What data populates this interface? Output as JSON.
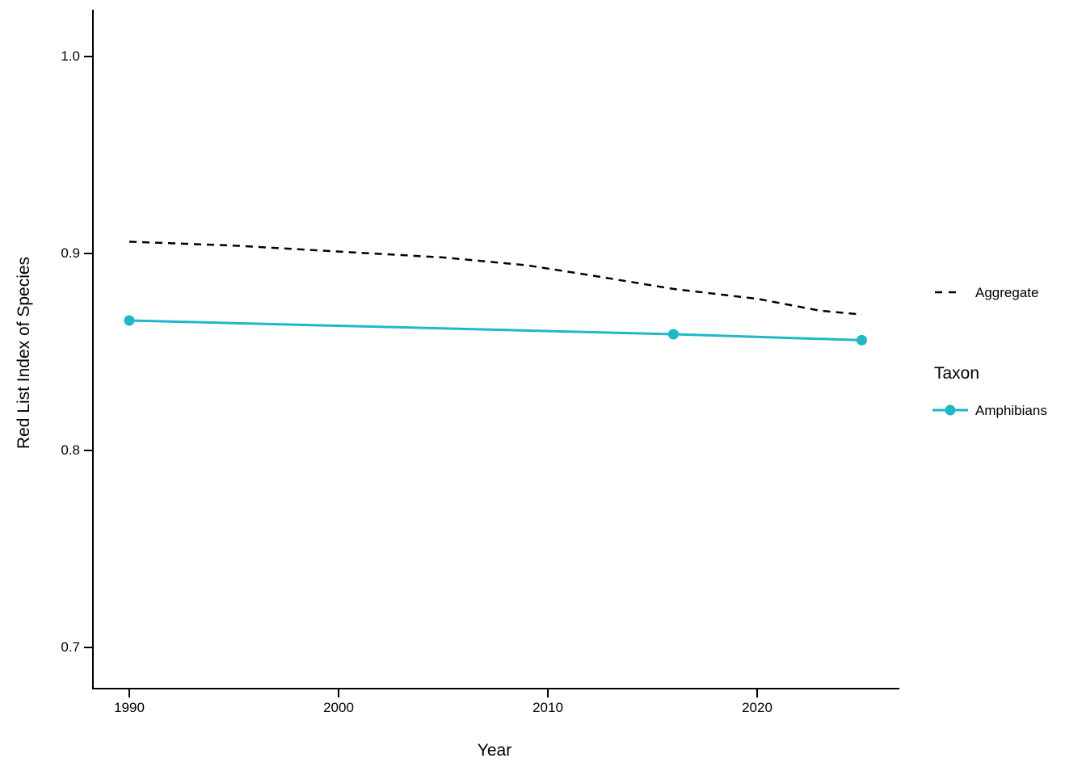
{
  "chart_data": {
    "type": "line",
    "title": "",
    "xlabel": "Year",
    "ylabel": "Red List Index of Species",
    "x_tick_labels": [
      "1990",
      "2000",
      "2010",
      "2020"
    ],
    "x_tick_values": [
      1990,
      2000,
      2010,
      2020
    ],
    "y_tick_labels": [
      "1.0",
      "0.9",
      "0.8",
      "0.7"
    ],
    "y_tick_values": [
      1.0,
      0.9,
      0.8,
      0.7
    ],
    "xlim": [
      1988.3,
      2026.8
    ],
    "ylim": [
      0.672,
      1.023
    ],
    "grid": false,
    "legend_position": "right",
    "series": [
      {
        "name": "Aggregate",
        "color": "#000000",
        "dash": true,
        "markers": false,
        "points": [
          [
            1990,
            0.906
          ],
          [
            1995,
            0.904
          ],
          [
            2000,
            0.901
          ],
          [
            2005,
            0.898
          ],
          [
            2009,
            0.894
          ],
          [
            2012,
            0.889
          ],
          [
            2016,
            0.882
          ],
          [
            2020,
            0.877
          ],
          [
            2023,
            0.871
          ],
          [
            2025,
            0.869
          ]
        ]
      },
      {
        "name": "Amphibians",
        "color": "#1eb8c8",
        "dash": false,
        "markers": true,
        "points": [
          [
            1990,
            0.866
          ],
          [
            2016,
            0.859
          ],
          [
            2025,
            0.856
          ]
        ]
      }
    ],
    "legend": {
      "aggregate_label": "Aggregate",
      "taxon_title": "Taxon",
      "amphibians_label": "Amphibians"
    }
  }
}
